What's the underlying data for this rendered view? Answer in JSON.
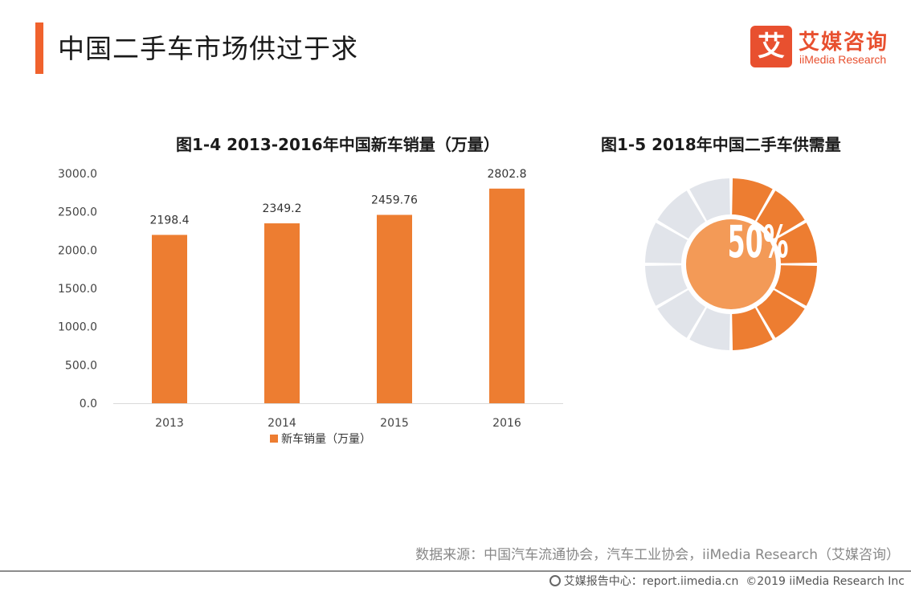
{
  "header": {
    "title": "中国二手车市场供过于求"
  },
  "brand": {
    "badge_char": "艾",
    "name_cn": "艾媒咨询",
    "name_en": "iiMedia Research"
  },
  "chart_data": [
    {
      "type": "bar",
      "title": "图1-4 2013-2016年中国新车销量（万量）",
      "categories": [
        "2013",
        "2014",
        "2015",
        "2016"
      ],
      "series": [
        {
          "name": "新车销量（万量）",
          "values": [
            2198.4,
            2349.2,
            2459.76,
            2802.8
          ],
          "labels": [
            "2198.4",
            "2349.2",
            "2459.76",
            "2802.8"
          ]
        }
      ],
      "ylim": [
        0,
        3000
      ],
      "yticks": [
        "0.0",
        "500.0",
        "1000.0",
        "1500.0",
        "2000.0",
        "2500.0",
        "3000.0"
      ],
      "legend_position": "bottom",
      "grid": false,
      "color": "#ed7d31"
    },
    {
      "type": "pie",
      "title": "图1-5 2018年中国二手车供需量",
      "center_label": "50%",
      "value": 0.5,
      "segments": 12,
      "colors": {
        "filled": "#ed7d31",
        "empty": "#e1e4ea",
        "center": "#f39a57"
      }
    }
  ],
  "footer": {
    "source": "数据来源：中国汽车流通协会，汽车工业协会，iiMedia Research（艾媒咨询）",
    "site": "艾媒报告中心：report.iimedia.cn",
    "copyright": "©2019  iiMedia Research  Inc"
  }
}
